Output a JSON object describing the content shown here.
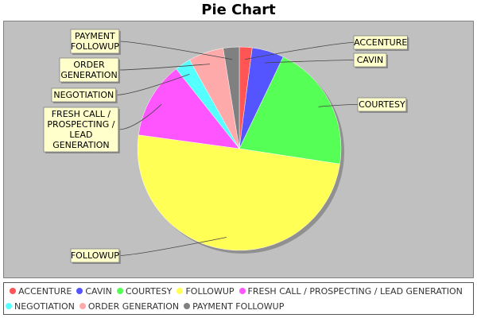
{
  "chart_data": {
    "type": "pie",
    "title": "Pie Chart",
    "start_angle_deg": 90,
    "direction": "clockwise",
    "slices": [
      {
        "label": "ACCENTURE",
        "value": 2.0,
        "color": "#ff5555"
      },
      {
        "label": "CAVIN",
        "value": 5.0,
        "color": "#5555ff"
      },
      {
        "label": "COURTESY",
        "value": 20.0,
        "color": "#55ff55"
      },
      {
        "label": "FOLLOWUP",
        "value": 49.0,
        "color": "#ffff55"
      },
      {
        "label": "FRESH CALL / PROSPECTING / LEAD GENERATION",
        "value": 12.0,
        "color": "#ff55ff"
      },
      {
        "label": "NEGOTIATION",
        "value": 2.5,
        "color": "#55ffff"
      },
      {
        "label": "ORDER GENERATION",
        "value": 5.5,
        "color": "#ffaaaa"
      },
      {
        "label": "PAYMENT FOLLOWUP",
        "value": 2.5,
        "color": "#808080"
      }
    ],
    "slice_labels": [
      {
        "lines": [
          "ACCENTURE"
        ]
      },
      {
        "lines": [
          "CAVIN"
        ]
      },
      {
        "lines": [
          "COURTESY"
        ]
      },
      {
        "lines": [
          "FOLLOWUP"
        ]
      },
      {
        "lines": [
          "FRESH CALL /",
          "PROSPECTING /",
          "LEAD",
          "GENERATION"
        ]
      },
      {
        "lines": [
          "NEGOTIATION"
        ]
      },
      {
        "lines": [
          "ORDER",
          "GENERATION"
        ]
      },
      {
        "lines": [
          "PAYMENT",
          "FOLLOWUP"
        ]
      }
    ],
    "legend_position": "bottom",
    "plot_background": "#c0c0c0"
  }
}
